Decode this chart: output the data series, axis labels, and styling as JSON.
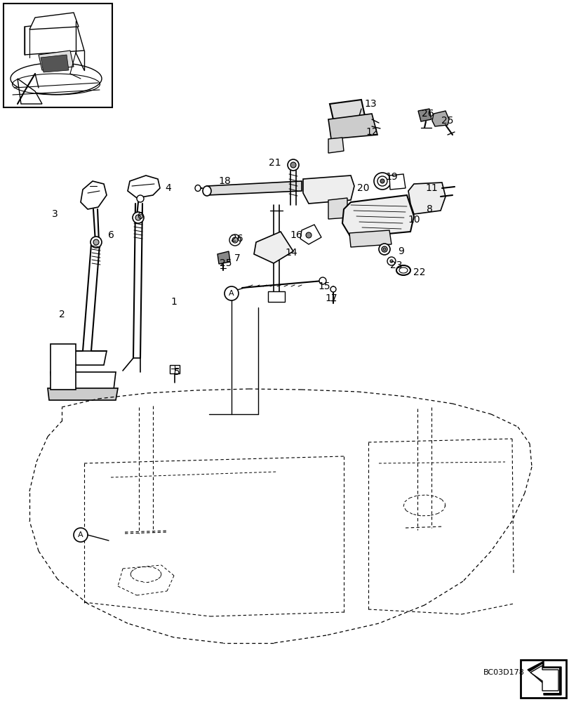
{
  "background_color": "#ffffff",
  "line_color": "#000000",
  "watermark": "BC03D178",
  "fig_width": 8.12,
  "fig_height": 10.0,
  "part_labels": [
    [
      "1",
      248,
      430
    ],
    [
      "2",
      88,
      448
    ],
    [
      "3",
      78,
      305
    ],
    [
      "4",
      240,
      268
    ],
    [
      "5",
      252,
      530
    ],
    [
      "6",
      158,
      335
    ],
    [
      "6",
      200,
      308
    ],
    [
      "7",
      338,
      368
    ],
    [
      "8",
      612,
      298
    ],
    [
      "9",
      572,
      358
    ],
    [
      "10",
      590,
      313
    ],
    [
      "11",
      615,
      268
    ],
    [
      "12",
      530,
      188
    ],
    [
      "13",
      528,
      148
    ],
    [
      "14",
      415,
      360
    ],
    [
      "15",
      462,
      408
    ],
    [
      "16",
      422,
      335
    ],
    [
      "17",
      472,
      425
    ],
    [
      "18",
      320,
      258
    ],
    [
      "19",
      558,
      252
    ],
    [
      "20",
      518,
      268
    ],
    [
      "21",
      392,
      232
    ],
    [
      "22",
      598,
      388
    ],
    [
      "23",
      565,
      378
    ],
    [
      "25",
      638,
      172
    ],
    [
      "25",
      322,
      375
    ],
    [
      "26",
      610,
      162
    ],
    [
      "26",
      338,
      340
    ]
  ]
}
